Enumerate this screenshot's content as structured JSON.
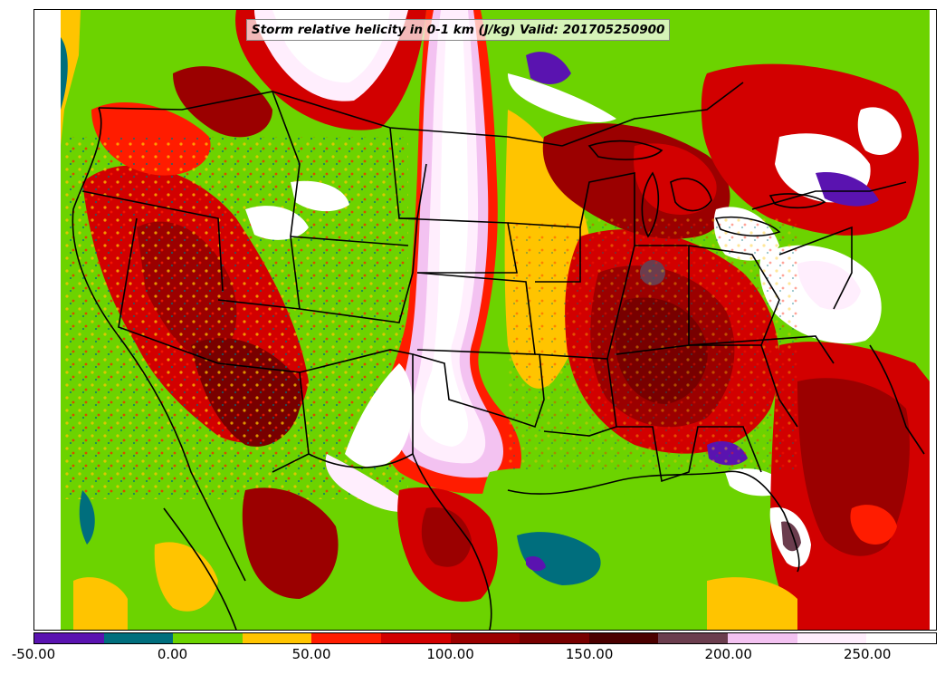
{
  "title": "Storm relative helicity in 0-1 km (J/kg) Valid: 201705250900",
  "legend": {
    "range": [
      -50,
      275
    ],
    "bin_width": 25,
    "colors": [
      "#5a13b0",
      "#006e7d",
      "#6cd300",
      "#ffc400",
      "#ff1c00",
      "#d20000",
      "#9b0000",
      "#780000",
      "#4b0000",
      "#6b3d4e",
      "#f3c2f1",
      "#ffeefd",
      "#ffffff"
    ],
    "ticks": [
      {
        "value": -50,
        "label": "-50.00"
      },
      {
        "value": 0,
        "label": "0.00"
      },
      {
        "value": 50,
        "label": "50.00"
      },
      {
        "value": 100,
        "label": "100.00"
      },
      {
        "value": 150,
        "label": "150.00"
      },
      {
        "value": 200,
        "label": "200.00"
      },
      {
        "value": 250,
        "label": "250.00"
      }
    ]
  },
  "map": {
    "region": "Contiguous United States",
    "field": "0-1 km storm relative helicity",
    "background_color": "#6cd300"
  }
}
